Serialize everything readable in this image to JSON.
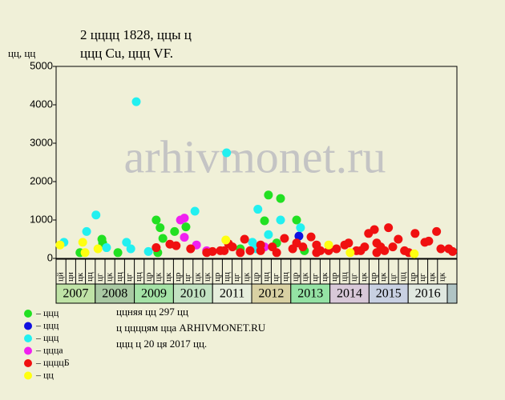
{
  "chart_data": {
    "type": "scatter",
    "title": "2 цццц 1828, ццы ц",
    "subtitle": "ццц Cu, ццц VF.",
    "y_label": "цц, цц",
    "watermark": "arhivmonet.ru",
    "xlim": [
      2007,
      2017.25
    ],
    "ylim": [
      0,
      5000
    ],
    "yticks": [
      0,
      1000,
      2000,
      3000,
      4000,
      5000
    ],
    "year_labels": [
      "2007",
      "2008",
      "2009",
      "2010",
      "2011",
      "2012",
      "2013",
      "2014",
      "2015",
      "2016"
    ],
    "year_colors": [
      "#bfe3a6",
      "#a9c9a3",
      "#a4e2a6",
      "#c2e2c2",
      "#e6eedc",
      "#d9d1a3",
      "#94e2a4",
      "#d8c8d8",
      "#c8d0e2",
      "#e0e8e0"
    ],
    "sub_labels": [
      "цй",
      "цн",
      "цк",
      "цц",
      "цг",
      "цк",
      "цц",
      "цг",
      "цц",
      "цр",
      "цк",
      "цк",
      "цр",
      "цг",
      "цк",
      "цк",
      "цр",
      "цц",
      "цг",
      "цк",
      "цр",
      "цц",
      "цг",
      "цц",
      "цр",
      "цк",
      "цг",
      "цк",
      "цр",
      "цц",
      "цг",
      "цк",
      "цр",
      "цк",
      "цг",
      "цц",
      "цр",
      "цг",
      "цк",
      "цк"
    ],
    "notes": [
      "ццняя цц 297 цц",
      "ц ццццям цца ARHIVMONET.RU",
      "ццц ц 20 ця 2017 цц."
    ],
    "series": [
      {
        "name": "– ццц",
        "color": "#22e022",
        "x": [
          2007.61,
          2008.17,
          2008.19,
          2008.58,
          2009.56,
          2009.66,
          2009.73,
          2010.03,
          2010.32,
          2009.6,
          2012.43,
          2012.33,
          2012.74,
          2012.64,
          2013.15,
          2013.35,
          2011.71
        ],
        "values": [
          150,
          500,
          400,
          150,
          1000,
          800,
          520,
          700,
          820,
          150,
          1650,
          980,
          1560,
          400,
          1000,
          200,
          250
        ]
      },
      {
        "name": "– ццц",
        "color": "#1010e0",
        "x": [
          2013.21
        ],
        "values": [
          580
        ]
      },
      {
        "name": "– ццц",
        "color": "#22f0f0",
        "x": [
          2007.2,
          2007.78,
          2008.02,
          2008.29,
          2008.8,
          2009.05,
          2008.91,
          2009.36,
          2010.55,
          2011.36,
          2012.16,
          2012.02,
          2012.43,
          2012.74,
          2013.25,
          2012.12
        ],
        "values": [
          420,
          700,
          1130,
          280,
          420,
          4080,
          250,
          180,
          1230,
          2750,
          1280,
          420,
          620,
          1000,
          800,
          250
        ]
      },
      {
        "name": "– цццa",
        "color": "#f020f0",
        "x": [
          2010.18,
          2010.28,
          2010.28,
          2010.59,
          2010.85,
          2012.33
        ],
        "values": [
          1000,
          1050,
          550,
          350,
          200,
          300
        ]
      },
      {
        "name": "– ццццБ",
        "color": "#f01010",
        "x": [
          2009.56,
          2009.91,
          2010.07,
          2010.44,
          2010.85,
          2011.0,
          2011.2,
          2011.41,
          2011.51,
          2011.82,
          2011.96,
          2012.23,
          2012.53,
          2012.84,
          2013.05,
          2013.15,
          2013.31,
          2013.52,
          2013.66,
          2013.76,
          2013.97,
          2014.17,
          2014.38,
          2014.48,
          2014.68,
          2014.89,
          2014.99,
          2015.14,
          2015.2,
          2015.3,
          2015.4,
          2015.5,
          2015.61,
          2015.75,
          2015.91,
          2016.02,
          2016.18,
          2016.43,
          2016.53,
          2016.73,
          2016.84,
          2017.04,
          2017.14,
          2015.2,
          2014.79,
          2013.66,
          2012.64,
          2011.71,
          2011.3,
          2012.23
        ],
        "values": [
          280,
          370,
          330,
          250,
          150,
          180,
          200,
          380,
          300,
          500,
          200,
          200,
          300,
          520,
          250,
          400,
          300,
          560,
          350,
          200,
          200,
          250,
          350,
          400,
          200,
          300,
          650,
          750,
          400,
          300,
          200,
          800,
          300,
          500,
          200,
          150,
          650,
          420,
          450,
          700,
          250,
          250,
          180,
          150,
          200,
          150,
          150,
          150,
          200,
          350
        ]
      },
      {
        "name": "– цц",
        "color": "#ffff10",
        "x": [
          2007.1,
          2007.68,
          2007.74,
          2008.07,
          2011.34,
          2013.97,
          2014.52,
          2016.16
        ],
        "values": [
          350,
          420,
          150,
          250,
          480,
          350,
          150,
          120
        ]
      }
    ]
  }
}
